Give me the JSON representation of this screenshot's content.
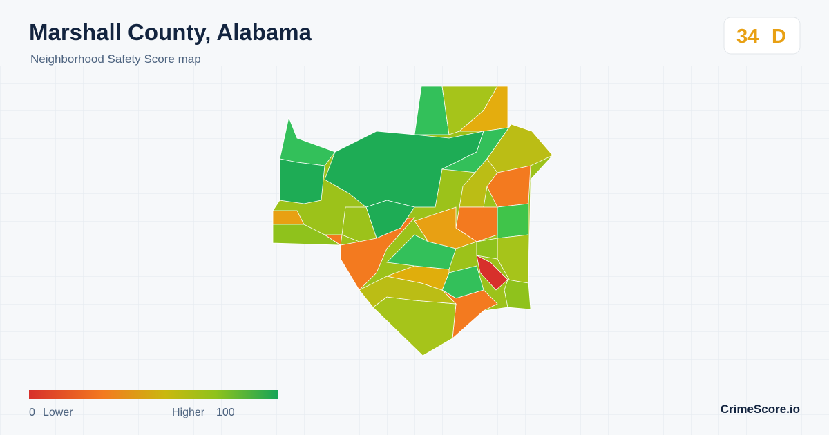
{
  "header": {
    "title": "Marshall County, Alabama",
    "subtitle": "Neighborhood Safety Score map"
  },
  "score": {
    "value": 34,
    "grade": "D"
  },
  "legend": {
    "min": 0,
    "min_label": "Lower",
    "max_label": "Higher",
    "max": 100
  },
  "brand": "CrimeScore.io"
}
